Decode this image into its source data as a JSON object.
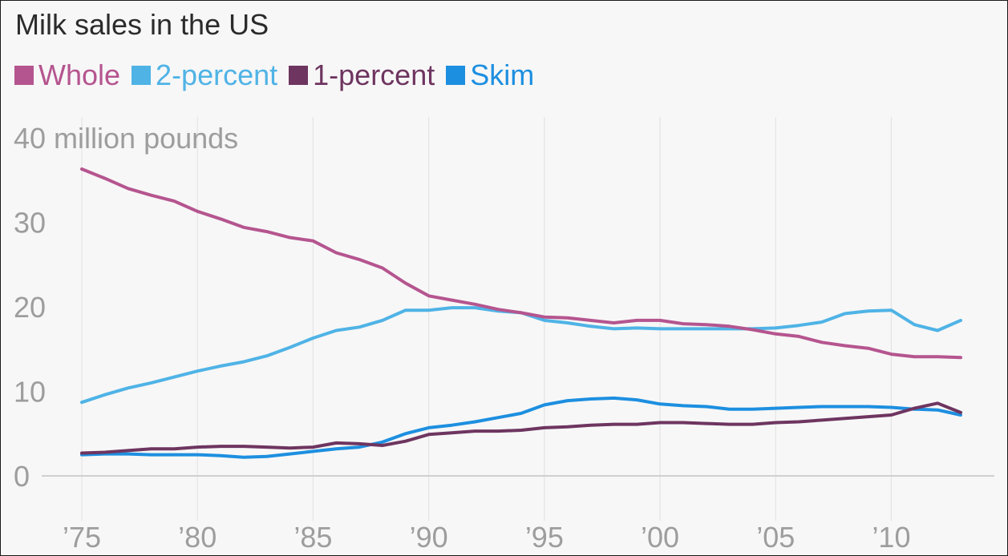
{
  "chart_data": {
    "type": "line",
    "title": "Milk sales in the US",
    "ylabel": "",
    "unit_label": "40 million pounds",
    "xlabel": "",
    "x": [
      1975,
      1976,
      1977,
      1978,
      1979,
      1980,
      1981,
      1982,
      1983,
      1984,
      1985,
      1986,
      1987,
      1988,
      1989,
      1990,
      1991,
      1992,
      1993,
      1994,
      1995,
      1996,
      1997,
      1998,
      1999,
      2000,
      2001,
      2002,
      2003,
      2004,
      2005,
      2006,
      2007,
      2008,
      2009,
      2010,
      2011,
      2012,
      2013
    ],
    "x_ticks": [
      1975,
      1980,
      1985,
      1990,
      1995,
      2000,
      2005,
      2010
    ],
    "x_tick_labels": [
      "’75",
      "’80",
      "’85",
      "’90",
      "’95",
      "’00",
      "’05",
      "’10"
    ],
    "y_ticks": [
      0,
      10,
      20,
      30,
      40
    ],
    "y_tick_labels": [
      "0",
      "10",
      "20",
      "30",
      "40 million pounds"
    ],
    "ylim": [
      0,
      40
    ],
    "xlim": [
      1975,
      2013
    ],
    "grid": "vertical at x ticks; horizontal baseline at 0",
    "legend_position": "top-left",
    "series": [
      {
        "name": "Whole",
        "color": "#b5558f",
        "values": [
          36.3,
          35.2,
          34.0,
          33.2,
          32.5,
          31.3,
          30.4,
          29.4,
          28.9,
          28.2,
          27.8,
          26.4,
          25.6,
          24.6,
          22.8,
          21.3,
          20.8,
          20.3,
          19.7,
          19.3,
          18.8,
          18.7,
          18.4,
          18.1,
          18.4,
          18.4,
          18.0,
          17.9,
          17.7,
          17.3,
          16.8,
          16.5,
          15.8,
          15.4,
          15.1,
          14.4,
          14.1,
          14.1,
          14.0
        ]
      },
      {
        "name": "2-percent",
        "color": "#4fb3e6",
        "values": [
          8.7,
          9.6,
          10.4,
          11.0,
          11.7,
          12.4,
          13.0,
          13.5,
          14.2,
          15.2,
          16.3,
          17.2,
          17.6,
          18.4,
          19.6,
          19.6,
          19.9,
          19.9,
          19.5,
          19.3,
          18.4,
          18.1,
          17.7,
          17.4,
          17.5,
          17.4,
          17.4,
          17.4,
          17.4,
          17.4,
          17.5,
          17.8,
          18.2,
          19.2,
          19.5,
          19.6,
          17.9,
          17.2,
          18.4
        ]
      },
      {
        "name": "1-percent",
        "color": "#6e3560",
        "values": [
          2.7,
          2.8,
          3.0,
          3.2,
          3.2,
          3.4,
          3.5,
          3.5,
          3.4,
          3.3,
          3.4,
          3.9,
          3.8,
          3.6,
          4.1,
          4.9,
          5.1,
          5.3,
          5.3,
          5.4,
          5.7,
          5.8,
          6.0,
          6.1,
          6.1,
          6.3,
          6.3,
          6.2,
          6.1,
          6.1,
          6.3,
          6.4,
          6.6,
          6.8,
          7.0,
          7.2,
          8.0,
          8.6,
          7.5
        ]
      },
      {
        "name": "Skim",
        "color": "#1d8fe0",
        "values": [
          2.5,
          2.6,
          2.6,
          2.5,
          2.5,
          2.5,
          2.4,
          2.2,
          2.3,
          2.6,
          2.9,
          3.2,
          3.4,
          4.0,
          5.0,
          5.7,
          6.0,
          6.4,
          6.9,
          7.4,
          8.4,
          8.9,
          9.1,
          9.2,
          9.0,
          8.5,
          8.3,
          8.2,
          7.9,
          7.9,
          8.0,
          8.1,
          8.2,
          8.2,
          8.2,
          8.1,
          7.9,
          7.8,
          7.2
        ]
      }
    ]
  }
}
